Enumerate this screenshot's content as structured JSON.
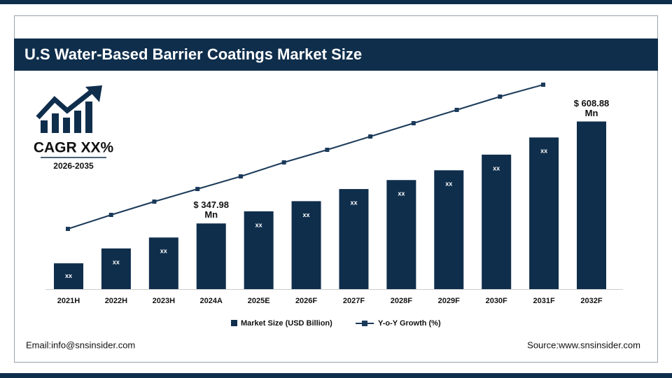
{
  "chart_data": {
    "type": "bar",
    "title": "U.S Water-Based Barrier Coatings Market Size",
    "cagr_label": "CAGR XX%",
    "cagr_period": "2026-2035",
    "categories": [
      "2021H",
      "2022H",
      "2023H",
      "2024A",
      "2025E",
      "2026F",
      "2027F",
      "2028F",
      "2029F",
      "2030F",
      "2031F",
      "2032F"
    ],
    "ylim": [
      180,
      660
    ],
    "y2lim": [
      0,
      30
    ],
    "series": [
      {
        "name": "Market Size (USD Billion)",
        "type": "bar",
        "color": "#0f2e4c",
        "values": [
          246,
          284,
          312,
          347.98,
          379,
          405,
          436,
          459,
          484,
          524,
          568,
          608.88
        ],
        "value_labels": [
          "xx",
          "xx",
          "xx",
          "$ 347.98 Mn",
          "xx",
          "xx",
          "xx",
          "xx",
          "xx",
          "xx",
          "xx",
          "$ 608.88 Mn"
        ]
      },
      {
        "name": "Y-o-Y Growth (%)",
        "type": "line",
        "axis": "y2",
        "color": "#1b3a5a",
        "values": [
          8.6,
          10.6,
          12.5,
          14.3,
          16.1,
          18.1,
          19.9,
          21.8,
          23.7,
          25.6,
          27.5,
          29.2
        ]
      }
    ],
    "email": "Email:info@snsinsider.com",
    "source": "Source:www.snsinsider.com"
  }
}
